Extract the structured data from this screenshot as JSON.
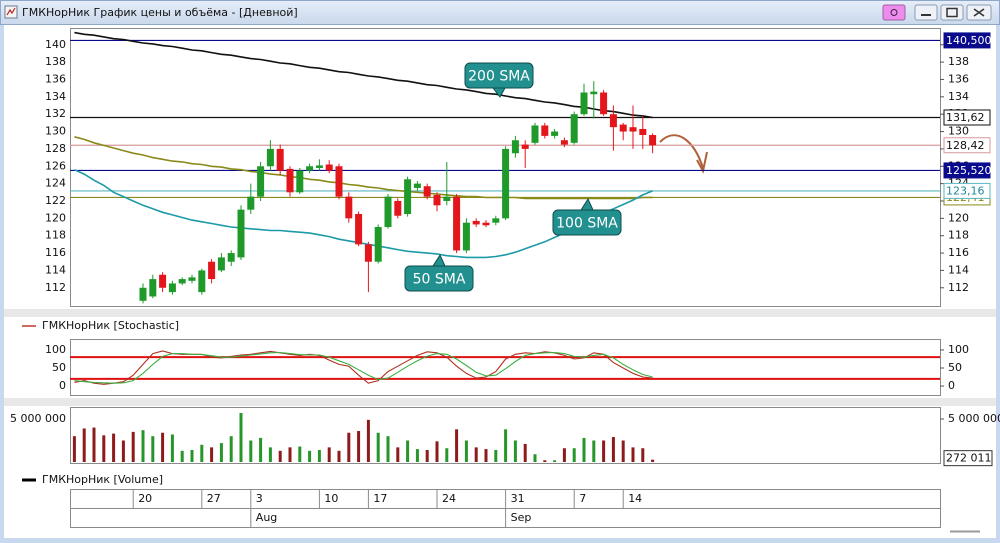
{
  "window": {
    "title": "ГМКНорНик График цены и объёма - [Дневной]"
  },
  "chart_data": [
    {
      "type": "candlestick",
      "categories": [
        null,
        null,
        null,
        null,
        null,
        null,
        "20",
        null,
        null,
        null,
        null,
        null,
        null,
        "27",
        null,
        null,
        null,
        null,
        "3",
        null,
        null,
        null,
        null,
        null,
        null,
        "10",
        null,
        null,
        null,
        null,
        "17",
        null,
        null,
        null,
        null,
        null,
        null,
        "24",
        null,
        null,
        null,
        null,
        null,
        null,
        "31",
        null,
        null,
        null,
        null,
        null,
        null,
        "7",
        null,
        null,
        null,
        null,
        "14",
        null,
        null,
        null
      ],
      "months": [
        null,
        null,
        null,
        null,
        null,
        null,
        null,
        null,
        null,
        null,
        null,
        null,
        null,
        null,
        null,
        null,
        null,
        null,
        "Aug",
        null,
        null,
        null,
        null,
        null,
        null,
        null,
        null,
        null,
        null,
        null,
        null,
        null,
        null,
        null,
        null,
        null,
        null,
        null,
        null,
        null,
        null,
        null,
        null,
        null,
        "Sep",
        null,
        null,
        null,
        null,
        null,
        null,
        null,
        null,
        null,
        null,
        null,
        null,
        null,
        null,
        null
      ],
      "open": [
        null,
        null,
        null,
        null,
        null,
        null,
        null,
        110.5,
        111,
        113.5,
        111.5,
        112.5,
        112.8,
        111.5,
        115,
        114,
        115,
        115.5,
        121,
        122.5,
        126,
        128,
        125.7,
        123,
        125.5,
        125.8,
        126.2,
        126,
        122.5,
        120.5,
        117,
        115,
        119,
        122,
        120.5,
        123.5,
        123.7,
        122.7,
        122,
        122.5,
        116.3,
        119.7,
        119.5,
        119.5,
        120,
        127.5,
        128.5,
        128.7,
        130.7,
        129.5,
        129,
        128.7,
        132,
        134.3,
        134.5,
        132,
        130.8,
        130.5,
        130.3,
        129.6
      ],
      "high": [
        null,
        null,
        null,
        null,
        null,
        null,
        null,
        112.5,
        113.5,
        113.8,
        112.8,
        113.2,
        113.5,
        114.2,
        115.3,
        116,
        116.3,
        121.5,
        124,
        126.5,
        129,
        128.5,
        126,
        125.8,
        126.3,
        126.8,
        126.7,
        126.3,
        123,
        120.8,
        117.3,
        119.3,
        122.8,
        122.3,
        124.8,
        124.3,
        124,
        123,
        126.5,
        122.8,
        120,
        120,
        119.8,
        120.3,
        128.3,
        129.5,
        129,
        131,
        131,
        130.3,
        129.3,
        132.3,
        135.5,
        135.8,
        134.8,
        133,
        131,
        133,
        131.8,
        129.8
      ],
      "low": [
        null,
        null,
        null,
        null,
        null,
        null,
        null,
        110.2,
        110.8,
        111.5,
        111.2,
        112.3,
        112.5,
        111.2,
        112.5,
        113.8,
        114.5,
        115.2,
        120.5,
        122,
        125.5,
        125,
        122.5,
        122.8,
        125.2,
        125.5,
        125.2,
        122.2,
        119.5,
        116.8,
        111.5,
        114.8,
        118.8,
        120,
        120.2,
        123.2,
        122.2,
        120.8,
        121.5,
        116,
        116,
        119,
        119,
        119.2,
        119.8,
        127,
        125.8,
        128.5,
        129.2,
        129.2,
        128.2,
        128.5,
        131.8,
        131.5,
        131.8,
        127.8,
        129,
        128,
        128,
        127.5
      ],
      "close": [
        null,
        null,
        null,
        null,
        null,
        null,
        null,
        112,
        113,
        112,
        112.5,
        113,
        113.2,
        114,
        113,
        115.5,
        116,
        121,
        122.5,
        126,
        128,
        125.5,
        123,
        125.5,
        126,
        126.1,
        125.5,
        122.5,
        120,
        117,
        115,
        119,
        122.5,
        120.3,
        124.5,
        124,
        122.5,
        121.5,
        122.5,
        116.3,
        119.5,
        119.3,
        119.2,
        120,
        128,
        129,
        128,
        130.7,
        129.5,
        130,
        128.5,
        132,
        134.5,
        134.6,
        132,
        130.5,
        130,
        130,
        129.6,
        128.42
      ],
      "up_color": "#1f9a2a",
      "down_color": "#e3161c",
      "series": [
        {
          "name": "200 SMA",
          "color": "#111111",
          "values": [
            141.4,
            141.2,
            141.1,
            140.9,
            140.7,
            140.6,
            140.4,
            140.2,
            140.1,
            139.9,
            139.8,
            139.6,
            139.4,
            139.3,
            139.1,
            138.9,
            138.8,
            138.6,
            138.4,
            138.3,
            138.1,
            137.9,
            137.8,
            137.6,
            137.4,
            137.3,
            137.1,
            136.9,
            136.8,
            136.6,
            136.4,
            136.3,
            136.1,
            135.9,
            135.8,
            135.6,
            135.4,
            135.3,
            135.1,
            134.9,
            134.8,
            134.6,
            134.4,
            134.3,
            134.1,
            133.9,
            133.8,
            133.6,
            133.4,
            133.3,
            133.1,
            132.9,
            132.8,
            132.6,
            132.4,
            132.3,
            132.1,
            131.9,
            131.8,
            131.62
          ]
        },
        {
          "name": "100 SMA",
          "color": "#8a8a1a",
          "values": [
            129.4,
            129.1,
            128.7,
            128.4,
            128.1,
            127.8,
            127.5,
            127.3,
            127.0,
            126.8,
            126.6,
            126.5,
            126.3,
            126.2,
            126.0,
            125.9,
            125.7,
            125.6,
            125.4,
            125.3,
            125.1,
            125.0,
            124.8,
            124.7,
            124.5,
            124.4,
            124.2,
            124.1,
            123.9,
            123.8,
            123.6,
            123.5,
            123.3,
            123.2,
            123.1,
            123.0,
            122.9,
            122.8,
            122.7,
            122.6,
            122.5,
            122.5,
            122.4,
            122.4,
            122.4,
            122.4,
            122.3,
            122.3,
            122.3,
            122.3,
            122.3,
            122.3,
            122.3,
            122.3,
            122.3,
            122.3,
            122.3,
            122.3,
            122.4,
            122.41
          ]
        },
        {
          "name": "50 SMA",
          "color": "#1c9aa8",
          "values": [
            125.6,
            125.1,
            124.4,
            123.8,
            123.0,
            122.5,
            122.0,
            121.5,
            121.1,
            120.7,
            120.4,
            120.1,
            119.8,
            119.6,
            119.4,
            119.2,
            119.0,
            118.9,
            118.8,
            118.7,
            118.6,
            118.6,
            118.5,
            118.4,
            118.3,
            118.1,
            117.9,
            117.6,
            117.4,
            117.2,
            117.0,
            116.8,
            116.6,
            116.4,
            116.2,
            116.1,
            116.0,
            115.9,
            115.7,
            115.6,
            115.5,
            115.5,
            115.5,
            115.6,
            115.8,
            116.1,
            116.5,
            116.9,
            117.3,
            117.8,
            118.3,
            118.9,
            119.5,
            120.1,
            120.6,
            121.1,
            121.6,
            122.1,
            122.7,
            123.16
          ]
        }
      ],
      "price_lines": [
        {
          "value": 140.5,
          "label": "140,500",
          "color": "#0a0a8c",
          "label_fill": "#0a0a8c",
          "label_color": "#ffffff"
        },
        {
          "value": 131.62,
          "label": "131,62",
          "color": "#111111",
          "label_fill": "#ffffff",
          "label_color": "#111111"
        },
        {
          "value": 128.42,
          "label": "128,42",
          "color": "#d69a9a",
          "label_fill": "#ffffff",
          "label_color": "#111111"
        },
        {
          "value": 125.52,
          "label": "125,520",
          "color": "#0a0a8c",
          "label_fill": "#0a0a8c",
          "label_color": "#ffffff"
        },
        {
          "value": 122.41,
          "label": "122,41",
          "color": "#8a8a1a",
          "label_fill": "#ffffff",
          "label_color": "#8a8a1a"
        },
        {
          "value": 123.16,
          "label": "123,16",
          "color": "#5bb8c2",
          "label_fill": "#ffffff",
          "label_color": "#1c8a98"
        }
      ],
      "ylim": [
        109.9,
        141.7
      ],
      "yticks": [
        112,
        114,
        116,
        118,
        120,
        122,
        124,
        126,
        128,
        130,
        132,
        134,
        136,
        138,
        140
      ]
    },
    {
      "type": "line",
      "legend": "ГМКНорНик [Stochastic]",
      "legend_color": "#c0392b",
      "series": [
        {
          "color": "#b03020",
          "values": [
            10,
            15,
            8,
            5,
            8,
            12,
            30,
            60,
            90,
            97,
            90,
            88,
            88,
            88,
            80,
            78,
            82,
            86,
            88,
            92,
            96,
            92,
            88,
            85,
            88,
            85,
            72,
            60,
            55,
            30,
            8,
            15,
            40,
            55,
            70,
            85,
            95,
            92,
            80,
            55,
            35,
            22,
            25,
            40,
            75,
            88,
            92,
            90,
            95,
            92,
            85,
            75,
            78,
            92,
            88,
            65,
            50,
            35,
            25,
            22
          ]
        },
        {
          "color": "#3cb043",
          "values": [
            15,
            12,
            10,
            9,
            8,
            9,
            15,
            35,
            60,
            82,
            90,
            90,
            88,
            87,
            84,
            80,
            80,
            83,
            86,
            89,
            92,
            93,
            90,
            87,
            86,
            86,
            80,
            70,
            60,
            45,
            30,
            18,
            22,
            38,
            55,
            70,
            83,
            90,
            88,
            75,
            57,
            38,
            28,
            30,
            48,
            68,
            85,
            90,
            92,
            93,
            90,
            82,
            80,
            85,
            88,
            78,
            60,
            45,
            32,
            25
          ]
        }
      ],
      "levels": [
        80,
        20
      ],
      "level_color": "#e01010",
      "ylim": [
        -22,
        122
      ],
      "yticks": [
        0,
        50,
        100
      ]
    },
    {
      "type": "bar",
      "legend": "ГМКНорНик [Volume]",
      "legend_color": "#000000",
      "values": [
        3000000,
        3900000,
        4000000,
        3100000,
        3300000,
        2500000,
        3500000,
        3700000,
        3000000,
        3400000,
        3200000,
        1300000,
        1400000,
        2000000,
        1700000,
        2200000,
        3000000,
        5700000,
        2500000,
        2800000,
        1700000,
        1300000,
        1700000,
        1800000,
        1300000,
        1400000,
        1700000,
        1300000,
        3400000,
        3600000,
        4900000,
        3400000,
        3000000,
        1700000,
        2500000,
        1500000,
        1400000,
        2400000,
        1600000,
        3800000,
        2500000,
        1700000,
        1500000,
        1400000,
        3800000,
        2500000,
        2100000,
        900000,
        200000,
        200000,
        1600000,
        1600000,
        2800000,
        2500000,
        2500000,
        2900000,
        2500000,
        1700000,
        1600000,
        272011
      ],
      "colors": [
        "#8e1b1b",
        "#8e1b1b",
        "#8e1b1b",
        "#8e1b1b",
        "#8e1b1b",
        "#8e1b1b",
        "#8e1b1b",
        "#27962a",
        "#27962a",
        "#8e1b1b",
        "#27962a",
        "#27962a",
        "#27962a",
        "#27962a",
        "#8e1b1b",
        "#27962a",
        "#27962a",
        "#27962a",
        "#27962a",
        "#27962a",
        "#27962a",
        "#8e1b1b",
        "#8e1b1b",
        "#27962a",
        "#27962a",
        "#27962a",
        "#8e1b1b",
        "#8e1b1b",
        "#8e1b1b",
        "#8e1b1b",
        "#8e1b1b",
        "#27962a",
        "#27962a",
        "#8e1b1b",
        "#27962a",
        "#27962a",
        "#8e1b1b",
        "#8e1b1b",
        "#27962a",
        "#8e1b1b",
        "#27962a",
        "#8e1b1b",
        "#8e1b1b",
        "#27962a",
        "#27962a",
        "#27962a",
        "#8e1b1b",
        "#27962a",
        "#8e1b1b",
        "#27962a",
        "#8e1b1b",
        "#27962a",
        "#27962a",
        "#27962a",
        "#8e1b1b",
        "#8e1b1b",
        "#8e1b1b",
        "#8e1b1b",
        "#8e1b1b",
        "#8e1b1b"
      ],
      "last_value": {
        "value": 272011,
        "label": "272 011"
      },
      "ylim": [
        0,
        6160000
      ],
      "yticks": [
        {
          "value": 5000000,
          "label": "5 000 000"
        }
      ]
    }
  ]
}
